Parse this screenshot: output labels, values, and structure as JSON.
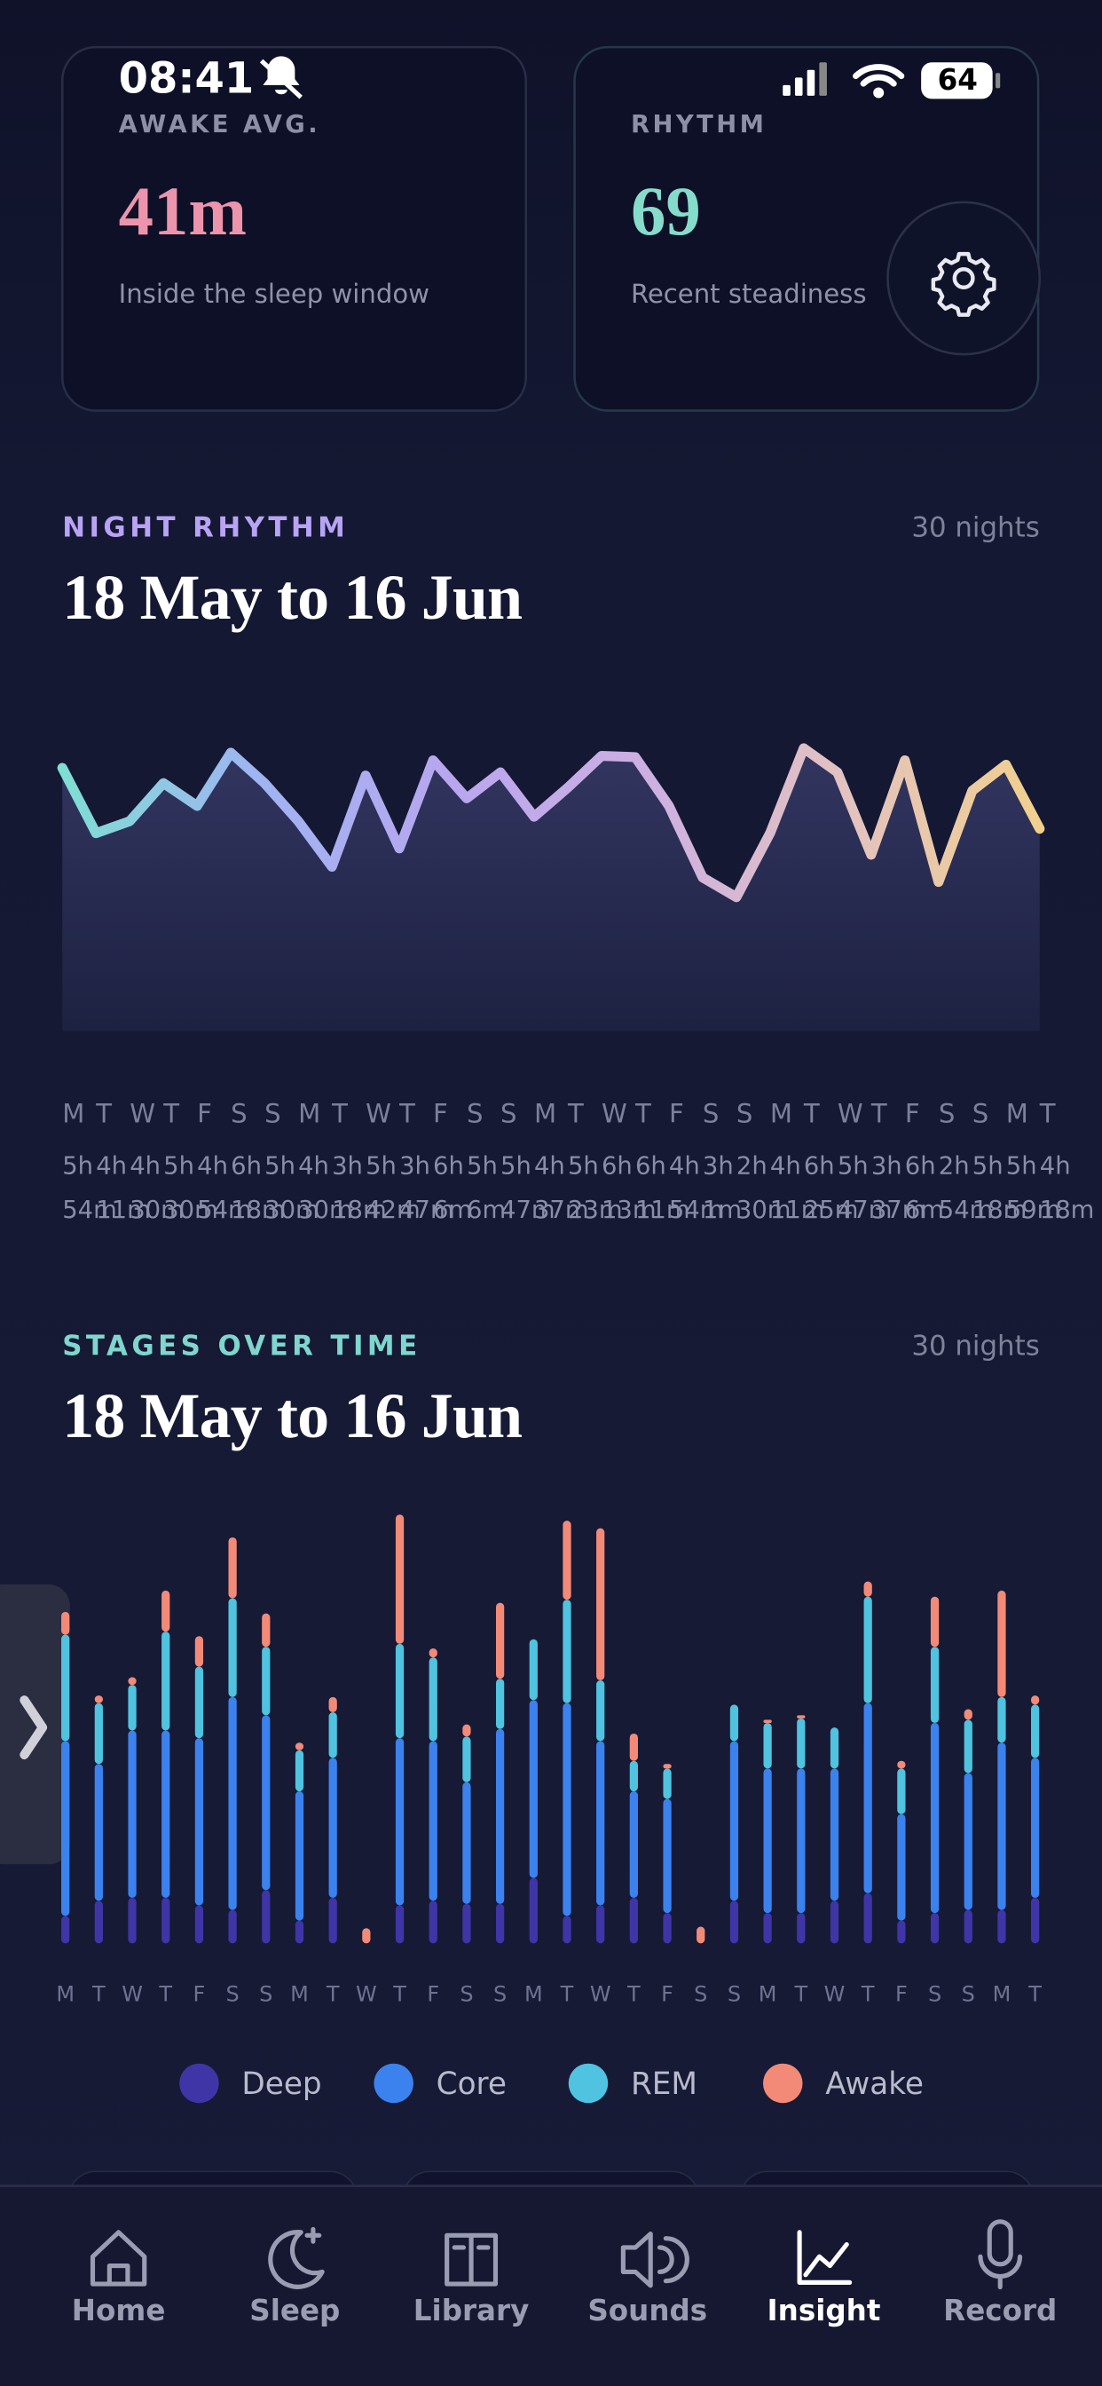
{
  "status_bar": {
    "time": "08:41",
    "battery": "64"
  },
  "cards": [
    {
      "label": "AWAKE AVG.",
      "value": "41m",
      "caption": "Inside the sleep window"
    },
    {
      "label": "RHYTHM",
      "value": "69",
      "caption": "Recent steadiness"
    }
  ],
  "chart_data": [
    {
      "type": "line",
      "eyebrow": "NIGHT RHYTHM",
      "title": "18 May to 16 Jun",
      "subtitle": "30 nights",
      "categories": [
        "M",
        "T",
        "W",
        "T",
        "F",
        "S",
        "S",
        "M",
        "T",
        "W",
        "T",
        "F",
        "S",
        "S",
        "M",
        "T",
        "W",
        "T",
        "F",
        "S",
        "S",
        "M",
        "T",
        "W",
        "T",
        "F",
        "S",
        "S",
        "M",
        "T"
      ],
      "values": [
        354,
        251,
        270,
        330,
        294,
        378,
        330,
        270,
        198,
        342,
        227,
        366,
        306,
        347,
        277,
        323,
        373,
        371,
        294,
        181,
        150,
        251,
        385,
        347,
        217,
        366,
        174,
        318,
        359,
        258
      ],
      "value_labels": [
        "5h 54m",
        "4h 11m",
        "4h 30m",
        "5h 30m",
        "4h 54m",
        "6h 18m",
        "5h 30m",
        "4h 30m",
        "3h 18m",
        "5h 42m",
        "3h 47m",
        "6h 6m",
        "5h 6m",
        "5h 47m",
        "4h 37m",
        "5h 23m",
        "6h 13m",
        "6h 11m",
        "4h 54m",
        "3h 1m",
        "2h 30m",
        "4h 11m",
        "6h 25m",
        "5h 47m",
        "3h 37m",
        "6h 6m",
        "2h 54m",
        "5h 18m",
        "5h 59m",
        "4h 18m"
      ],
      "ylim": [
        120,
        420
      ],
      "colors": [
        "#7fded3",
        "#9fb4f2",
        "#b9a6ee",
        "#cdb0e2",
        "#e3c2c0",
        "#f1d08e"
      ]
    },
    {
      "type": "bar",
      "stacked": true,
      "eyebrow": "STAGES OVER TIME",
      "title": "18 May to 16 Jun",
      "subtitle": "30 nights",
      "categories": [
        "M",
        "T",
        "W",
        "T",
        "F",
        "S",
        "S",
        "M",
        "T",
        "W",
        "T",
        "F",
        "S",
        "S",
        "M",
        "T",
        "W",
        "T",
        "F",
        "S",
        "S",
        "M",
        "T",
        "W",
        "T",
        "F",
        "S",
        "S",
        "M",
        "T"
      ],
      "ylim": [
        0,
        600
      ],
      "series": [
        {
          "name": "Deep",
          "color": "#3f35a6",
          "values": [
            36,
            56,
            60,
            60,
            50,
            44,
            70,
            30,
            60,
            0,
            50,
            56,
            52,
            52,
            86,
            36,
            50,
            60,
            40,
            0,
            56,
            40,
            40,
            56,
            66,
            30,
            40,
            44,
            44,
            60
          ]
        },
        {
          "name": "Core",
          "color": "#3b82ee",
          "values": [
            230,
            180,
            220,
            220,
            220,
            280,
            230,
            170,
            184,
            0,
            220,
            210,
            160,
            230,
            234,
            280,
            216,
            140,
            150,
            0,
            210,
            190,
            190,
            174,
            250,
            140,
            250,
            180,
            220,
            184
          ]
        },
        {
          "name": "REM",
          "color": "#4fc3df",
          "values": [
            140,
            80,
            60,
            130,
            94,
            130,
            90,
            54,
            60,
            0,
            124,
            110,
            60,
            66,
            80,
            136,
            80,
            40,
            40,
            0,
            48,
            60,
            66,
            54,
            140,
            60,
            100,
            70,
            60,
            70
          ]
        },
        {
          "name": "Awake",
          "color": "#f38a78",
          "values": [
            30,
            10,
            10,
            54,
            40,
            80,
            44,
            10,
            20,
            20,
            170,
            12,
            16,
            100,
            0,
            104,
            200,
            36,
            6,
            22,
            0,
            4,
            4,
            0,
            20,
            10,
            66,
            14,
            140,
            12
          ]
        }
      ]
    }
  ],
  "nav": {
    "items": [
      "Home",
      "Sleep",
      "Library",
      "Sounds",
      "Insight",
      "Record"
    ],
    "active_index": 4
  }
}
